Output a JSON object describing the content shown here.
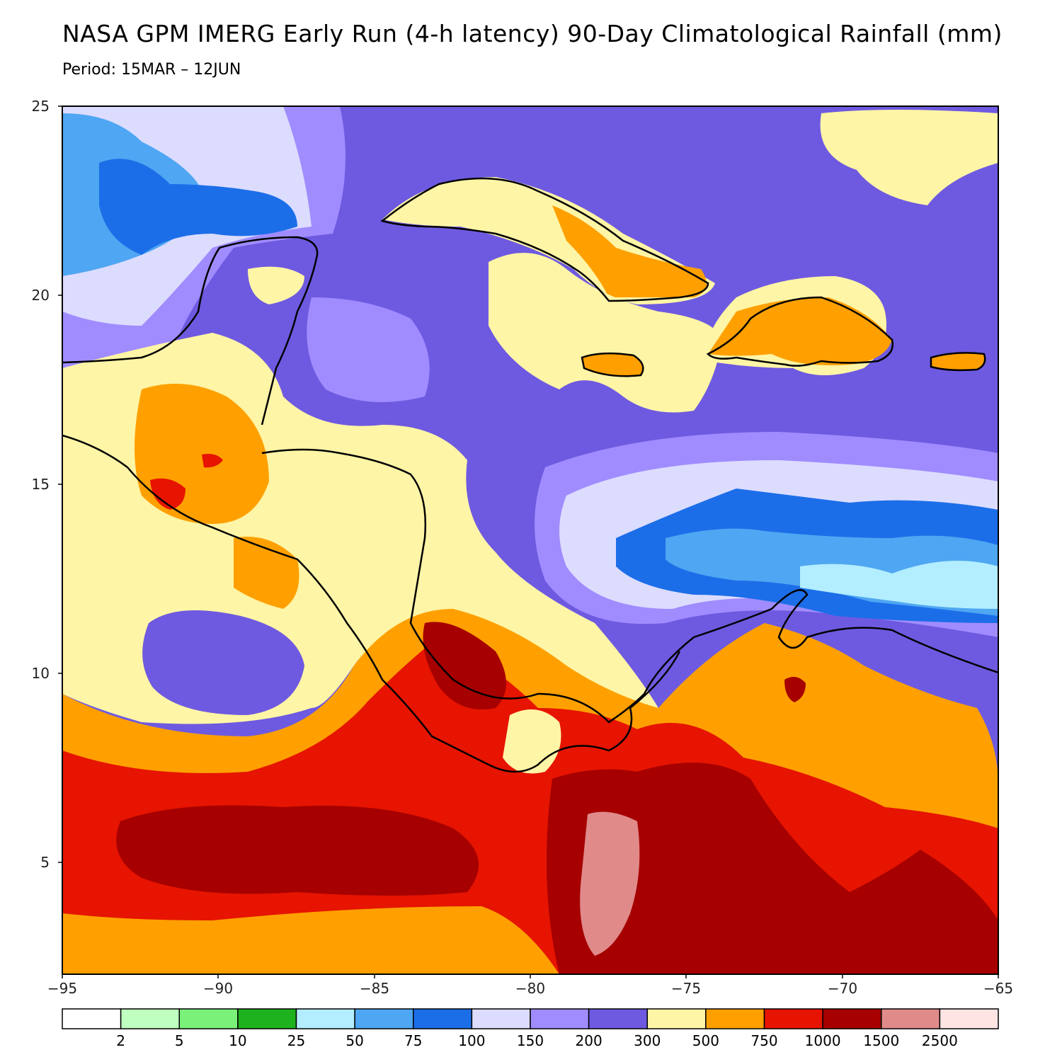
{
  "title": "NASA GPM IMERG Early Run (4-h latency) 90-Day Climatological Rainfall (mm)",
  "subtitle": "Period: 15MAR – 12JUN",
  "axes": {
    "lat_ticks": [
      "25",
      "20",
      "15",
      "10",
      "5"
    ],
    "lon_ticks": [
      "−95",
      "−90",
      "−85",
      "−80",
      "−75",
      "−70",
      "−65"
    ],
    "lon_range": [
      -95,
      -65
    ],
    "lat_range": [
      2,
      25
    ]
  },
  "legend": {
    "colors": [
      "#ffffff",
      "#bfffbf",
      "#7af27a",
      "#1fb21f",
      "#b2eeff",
      "#4fa6f2",
      "#1c6ee8",
      "#dcdcff",
      "#a08cff",
      "#6e5ae0",
      "#fff5a6",
      "#ffa000",
      "#e61400",
      "#a60000",
      "#e08a8a",
      "#ffe4e4"
    ],
    "labels": [
      "2",
      "5",
      "10",
      "25",
      "50",
      "75",
      "100",
      "150",
      "200",
      "300",
      "500",
      "750",
      "1000",
      "1500",
      "2500"
    ]
  }
}
